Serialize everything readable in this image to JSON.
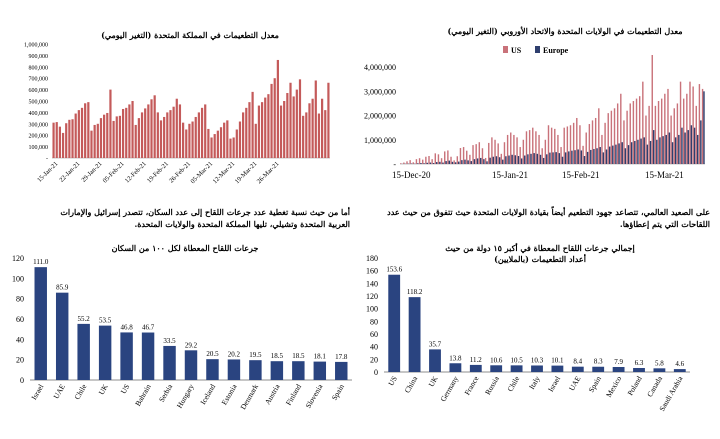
{
  "charts": {
    "uk_daily": {
      "title": "معدل التطعيمات في المملكة المتحدة (التغير اليومي)",
      "y_ticks": [
        "1,000,000",
        "900,000",
        "800,000",
        "700,000",
        "600,000",
        "500,000",
        "400,000",
        "300,000",
        "200,000",
        "100,000",
        "-"
      ],
      "x_ticks": [
        "15-Jan-21",
        "22-Jan-21",
        "29-Jan-21",
        "05-Feb-21",
        "12-Feb-21",
        "19-Feb-21",
        "26-Feb-21",
        "05-Mar-21",
        "12-Mar-21",
        "19-Mar-21",
        "26-Mar-21"
      ]
    },
    "us_eu_daily": {
      "title": "معدل التطعيمات في الولايات المتحدة والاتحاد الأوروبي (التغير اليومي)",
      "legend": [
        "US",
        "Europe"
      ],
      "y_ticks": [
        "4,000,000",
        "3,000,000",
        "2,000,000",
        "1,000,000",
        "-"
      ],
      "x_ticks": [
        "15-Dec-20",
        "15-Jan-21",
        "15-Feb-21",
        "15-Mar-21"
      ]
    },
    "per100": {
      "note": "أما من حيث نسبة تغطية عدد جرعات اللقاح إلى عدد السكان، تتصدر إسرائيل والإمارات العربية المتحدة وتشيلي، تليها المملكة المتحدة والولايات المتحدة.",
      "title": "جرعات اللقاح المعطاة لكل ١٠٠ من السكان",
      "y_ticks": [
        "120",
        "100",
        "80",
        "60",
        "40",
        "20",
        "0"
      ]
    },
    "top15": {
      "note": "على الصعيد العالمي، تتصاعد جهود التطعيم أيضاً بقيادة الولايات المتحدة حيث تتفوق من حيث عدد اللقاحات التي يتم إعطاؤها.",
      "title": "إجمالي جرعات اللقاح المعطاة في أكبر ١٥ دولة من حيث أعداد التطعيمات (بالملايين)",
      "y_ticks": [
        "180",
        "160",
        "140",
        "120",
        "100",
        "80",
        "60",
        "40",
        "20",
        "0"
      ]
    }
  },
  "chart_data": [
    {
      "type": "bar",
      "title": "معدل التطعيمات في المملكة المتحدة (التغير اليومي)",
      "ylim": [
        0,
        1000000
      ],
      "x_start": "15-Jan-21",
      "values": [
        310000,
        315000,
        275000,
        220000,
        305000,
        335000,
        340000,
        390000,
        420000,
        440000,
        480000,
        490000,
        240000,
        290000,
        300000,
        350000,
        380000,
        395000,
        600000,
        325000,
        365000,
        370000,
        430000,
        440000,
        470000,
        500000,
        290000,
        350000,
        400000,
        435000,
        470000,
        515000,
        550000,
        400000,
        330000,
        360000,
        400000,
        420000,
        450000,
        520000,
        470000,
        310000,
        250000,
        300000,
        320000,
        360000,
        400000,
        440000,
        470000,
        255000,
        180000,
        210000,
        240000,
        270000,
        310000,
        330000,
        170000,
        180000,
        250000,
        320000,
        400000,
        440000,
        490000,
        580000,
        300000,
        460000,
        490000,
        530000,
        560000,
        650000,
        700000,
        860000,
        460000,
        500000,
        570000,
        660000,
        540000,
        600000,
        690000,
        370000,
        400000,
        480000,
        520000,
        680000,
        390000,
        520000,
        420000,
        660000
      ]
    },
    {
      "type": "bar",
      "title": "معدل التطعيمات في الولايات المتحدة والاتحاد الأوروبي (التغير اليومي)",
      "ylim": [
        0,
        4500000
      ],
      "series": [
        {
          "name": "US",
          "color": "#c9727a",
          "values": [
            30000,
            60000,
            110000,
            160000,
            70000,
            200000,
            240000,
            180000,
            300000,
            330000,
            200000,
            440000,
            400000,
            240000,
            520000,
            560000,
            300000,
            150000,
            320000,
            660000,
            700000,
            550000,
            380000,
            780000,
            820000,
            900000,
            650000,
            250000,
            870000,
            1100000,
            1000000,
            850000,
            420000,
            900000,
            1200000,
            1300000,
            1200000,
            1100000,
            700000,
            1000000,
            1350000,
            1400000,
            1500000,
            1350000,
            1200000,
            650000,
            1000000,
            1600000,
            1500000,
            1450000,
            1200000,
            700000,
            1500000,
            1550000,
            1600000,
            1700000,
            1900000,
            1600000,
            750000,
            1300000,
            1650000,
            1800000,
            1900000,
            2300000,
            1200000,
            1700000,
            2100000,
            2200000,
            2300000,
            2500000,
            2900000,
            1800000,
            2200000,
            2500000,
            2600000,
            2700000,
            2800000,
            3400000,
            2000000,
            2400000,
            4500000,
            2400000,
            2600000,
            2700000,
            2900000,
            3100000,
            2000000,
            2300000,
            2500000,
            3400000,
            2700000,
            2900000,
            3400000,
            3200000,
            2400000,
            3300000,
            3100000
          ]
        },
        {
          "name": "Europe",
          "color": "#2f3f6e",
          "values": [
            5000,
            10000,
            15000,
            20000,
            12000,
            30000,
            40000,
            30000,
            50000,
            60000,
            40000,
            80000,
            90000,
            60000,
            120000,
            140000,
            90000,
            70000,
            100000,
            160000,
            180000,
            150000,
            120000,
            200000,
            230000,
            250000,
            200000,
            110000,
            260000,
            300000,
            320000,
            280000,
            180000,
            320000,
            350000,
            380000,
            360000,
            330000,
            230000,
            350000,
            400000,
            420000,
            450000,
            420000,
            380000,
            250000,
            400000,
            470000,
            480000,
            490000,
            450000,
            300000,
            480000,
            520000,
            550000,
            570000,
            600000,
            560000,
            330000,
            500000,
            580000,
            620000,
            650000,
            700000,
            480000,
            600000,
            720000,
            760000,
            800000,
            850000,
            900000,
            650000,
            780000,
            900000,
            950000,
            1000000,
            1050000,
            1100000,
            800000,
            950000,
            1400000,
            1000000,
            1100000,
            1150000,
            1200000,
            1300000,
            900000,
            1100000,
            1200000,
            1500000,
            1300000,
            1400000,
            1600000,
            1500000,
            1200000,
            1800000,
            3000000
          ]
        }
      ],
      "x_ticks": [
        "15-Dec-20",
        "15-Jan-21",
        "15-Feb-21",
        "15-Mar-21"
      ],
      "ylabel": ""
    },
    {
      "type": "bar",
      "title": "جرعات اللقاح المعطاة لكل ١٠٠ من السكان",
      "categories": [
        "Israel",
        "UAE",
        "Chile",
        "UK",
        "US",
        "Bahrain",
        "Serbia",
        "Hungary",
        "Iceland",
        "Estonia",
        "Denmark",
        "Austria",
        "Finland",
        "Slovenia",
        "Spain"
      ],
      "values": [
        111.0,
        85.9,
        55.2,
        53.5,
        46.8,
        46.7,
        33.5,
        29.2,
        20.5,
        20.2,
        19.5,
        18.5,
        18.5,
        18.1,
        17.8
      ],
      "labels": [
        "111.0",
        "85.9",
        "55.2",
        "53.5",
        "46.8",
        "46.7",
        "33.5",
        "29.2",
        "20.5",
        "20.2",
        "19.5",
        "18.5",
        "18.5",
        "18.1",
        "17.8"
      ],
      "ylim": [
        0,
        120
      ]
    },
    {
      "type": "bar",
      "title": "إجمالي جرعات اللقاح المعطاة في أكبر ١٥ دولة من حيث أعداد التطعيمات (بالملايين)",
      "categories": [
        "US",
        "China",
        "UK",
        "Germany",
        "France",
        "Russia",
        "Chile",
        "Italy",
        "Israel",
        "UAE",
        "Spain",
        "Mexico",
        "Poland",
        "Canada",
        "Saudi Arabia"
      ],
      "values": [
        153.6,
        118.2,
        35.7,
        13.8,
        11.2,
        10.6,
        10.5,
        10.3,
        10.1,
        8.4,
        8.3,
        7.9,
        6.3,
        5.8,
        4.6
      ],
      "labels": [
        "153.6",
        "118.2",
        "35.7",
        "13.8",
        "11.2",
        "10.6",
        "10.5",
        "10.3",
        "10.1",
        "8.4",
        "8.3",
        "7.9",
        "6.3",
        "5.8",
        "4.6"
      ],
      "ylim": [
        0,
        180
      ]
    }
  ]
}
